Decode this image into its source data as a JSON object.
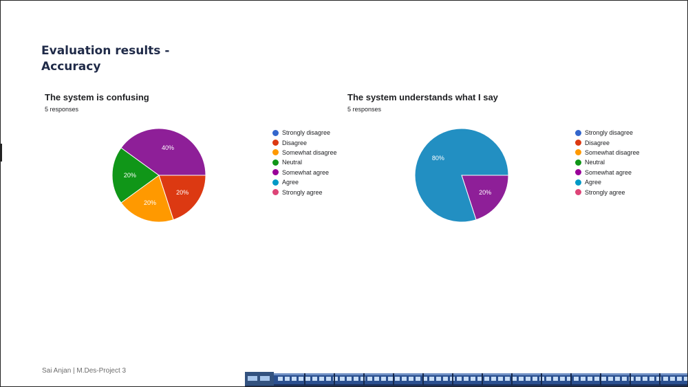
{
  "slide": {
    "title_line1": "Evaluation results -",
    "title_line2": "Accuracy",
    "footer": "Sai Anjan | M.Des-Project 3"
  },
  "legend_items": [
    {
      "label": "Strongly disagree",
      "color": "#3366cc"
    },
    {
      "label": "Disagree",
      "color": "#dc3912"
    },
    {
      "label": "Somewhat disagree",
      "color": "#ff9900"
    },
    {
      "label": "Neutral",
      "color": "#109618"
    },
    {
      "label": "Somewhat agree",
      "color": "#990099"
    },
    {
      "label": "Agree",
      "color": "#0099c6"
    },
    {
      "label": "Strongly agree",
      "color": "#dd4477"
    }
  ],
  "chart_data": [
    {
      "type": "pie",
      "title": "The system is confusing",
      "subtitle": "5 responses",
      "legend_position": "right",
      "slices": [
        {
          "category": "Strongly disagree",
          "value": 0,
          "color": "#3366cc"
        },
        {
          "category": "Disagree",
          "value": 20,
          "label": "20%",
          "color": "#dc3912"
        },
        {
          "category": "Somewhat disagree",
          "value": 20,
          "label": "20%",
          "color": "#ff9900"
        },
        {
          "category": "Neutral",
          "value": 20,
          "label": "20%",
          "color": "#109618"
        },
        {
          "category": "Somewhat agree",
          "value": 40,
          "label": "40%",
          "color": "#8e1f98"
        },
        {
          "category": "Agree",
          "value": 0,
          "color": "#0099c6"
        },
        {
          "category": "Strongly agree",
          "value": 0,
          "color": "#dd4477"
        }
      ]
    },
    {
      "type": "pie",
      "title": "The system understands what I say",
      "subtitle": "5 responses",
      "legend_position": "right",
      "slices": [
        {
          "category": "Strongly disagree",
          "value": 0,
          "color": "#3366cc"
        },
        {
          "category": "Disagree",
          "value": 0,
          "color": "#dc3912"
        },
        {
          "category": "Somewhat disagree",
          "value": 0,
          "color": "#ff9900"
        },
        {
          "category": "Neutral",
          "value": 0,
          "color": "#109618"
        },
        {
          "category": "Somewhat agree",
          "value": 20,
          "label": "20%",
          "color": "#8e1f98"
        },
        {
          "category": "Agree",
          "value": 80,
          "label": "80%",
          "color": "#228fc2"
        },
        {
          "category": "Strongly agree",
          "value": 0,
          "color": "#dd4477"
        }
      ]
    }
  ]
}
